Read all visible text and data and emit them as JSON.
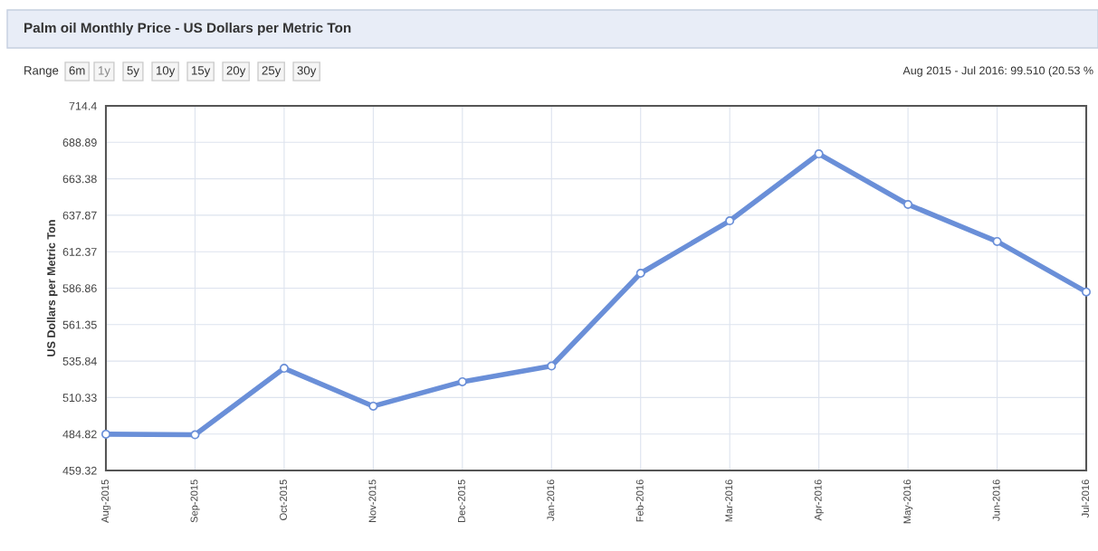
{
  "chart_data": {
    "type": "line",
    "title": "Palm oil Monthly Price - US Dollars per Metric Ton",
    "ylabel": "US Dollars per Metric Ton",
    "categories": [
      "Aug-2015",
      "Sep-2015",
      "Oct-2015",
      "Nov-2015",
      "Dec-2015",
      "Jan-2016",
      "Feb-2016",
      "Mar-2016",
      "Apr-2016",
      "May-2016",
      "Jun-2016",
      "Jul-2016"
    ],
    "series": [
      {
        "color": "#6a8fd8",
        "values": [
          484.7,
          484.3,
          530.8,
          504.3,
          521.4,
          532.4,
          597.3,
          634.0,
          680.8,
          645.4,
          619.5,
          584.2
        ]
      }
    ],
    "ylim": [
      459.32,
      714.4
    ],
    "yticks": [
      459.32,
      484.82,
      510.33,
      535.84,
      561.35,
      586.86,
      612.37,
      637.87,
      663.38,
      688.89,
      714.4
    ],
    "grid": true,
    "marker": "circle",
    "line_style": "solid",
    "annotations": [
      "Range",
      "6m",
      "1y",
      "5y",
      "10y",
      "15y",
      "20y",
      "25y",
      "30y",
      "Aug 2015 - Jul 2016: 99.510 (20.53 %"
    ]
  }
}
